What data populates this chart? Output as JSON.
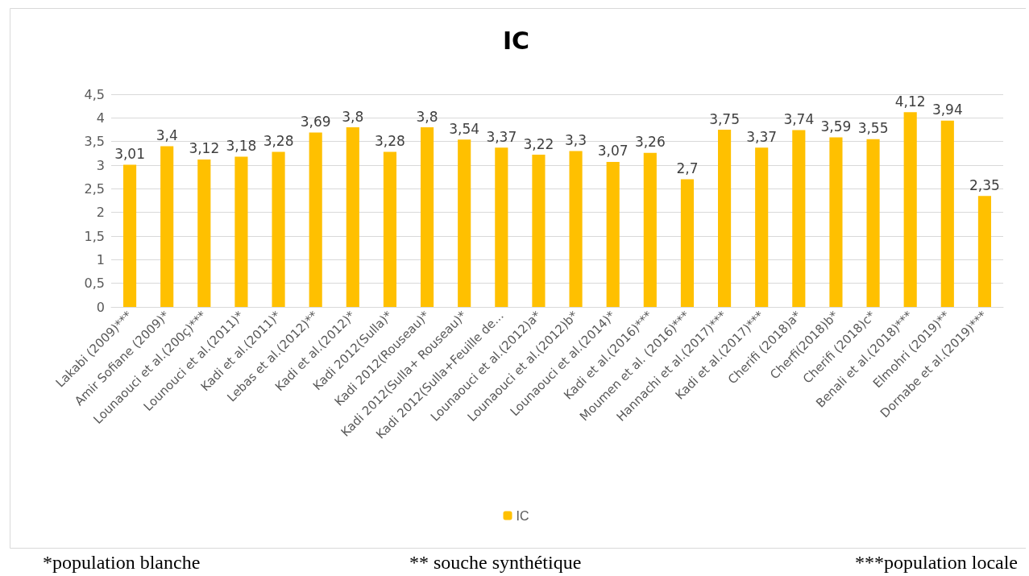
{
  "chart_data": {
    "type": "bar",
    "title": "IC",
    "categories": [
      "Lakabi (2009)***",
      "Amir Sofiane (2009)*",
      "Lounaouci et al.(200ç)***",
      "Lounouci et al.(2011)*",
      "Kadi et al.(2011)*",
      "Lebas et al.(2012)**",
      "Kadi et al.(2012)*",
      "Kadi 2012(Sulla)*",
      "Kadi 2012(Rouseau)*",
      "Kadi 2012(Sulla+ Rouseau)*",
      "Kadi 2012(Sulla+Feuille de...",
      "Lounaouci et al.(2012)a*",
      "Lounaouci et al.(2012)b*",
      "Lounaouci et al.(2014)*",
      "Kadi et al.(2016)***",
      "Moumen et al. (2016)***",
      "Hannachi et al.(2017)***",
      "Kadi et al.(2017)***",
      "Cherifi (2018)a*",
      "Cherfi(2018)b*",
      "Cherifi (2018)c*",
      "Benali et al.(2018)***",
      "Elmohri (2019)**",
      "Dornabe et al.(2019)***"
    ],
    "series": [
      {
        "name": "IC",
        "color": "#ffc000",
        "values": [
          3.01,
          3.4,
          3.12,
          3.18,
          3.28,
          3.69,
          3.8,
          3.28,
          3.8,
          3.54,
          3.37,
          3.22,
          3.3,
          3.07,
          3.26,
          2.7,
          3.75,
          3.37,
          3.74,
          3.59,
          3.55,
          4.12,
          3.94,
          2.35
        ],
        "value_labels": [
          "3,01",
          "3,4",
          "3,12",
          "3,18",
          "3,28",
          "3,69",
          "3,8",
          "3,28",
          "3,8",
          "3,54",
          "3,37",
          "3,22",
          "3,3",
          "3,07",
          "3,26",
          "2,7",
          "3,75",
          "3,37",
          "3,74",
          "3,59",
          "3,55",
          "4,12",
          "3,94",
          "2,35"
        ]
      }
    ],
    "ylim": [
      0,
      4.5
    ],
    "yticks": [
      0,
      {
        "value": 0.5,
        "label": "0,5"
      },
      1,
      {
        "value": 1.5,
        "label": "1,5"
      },
      2,
      {
        "value": 2.5,
        "label": "2,5"
      },
      3,
      {
        "value": 3.5,
        "label": "3,5"
      },
      4,
      {
        "value": 4.5,
        "label": "4,5"
      }
    ],
    "grid": "y",
    "legend": "bottom",
    "annotations": [
      "*population blanche",
      "** souche synthétique",
      "***population locale"
    ]
  }
}
